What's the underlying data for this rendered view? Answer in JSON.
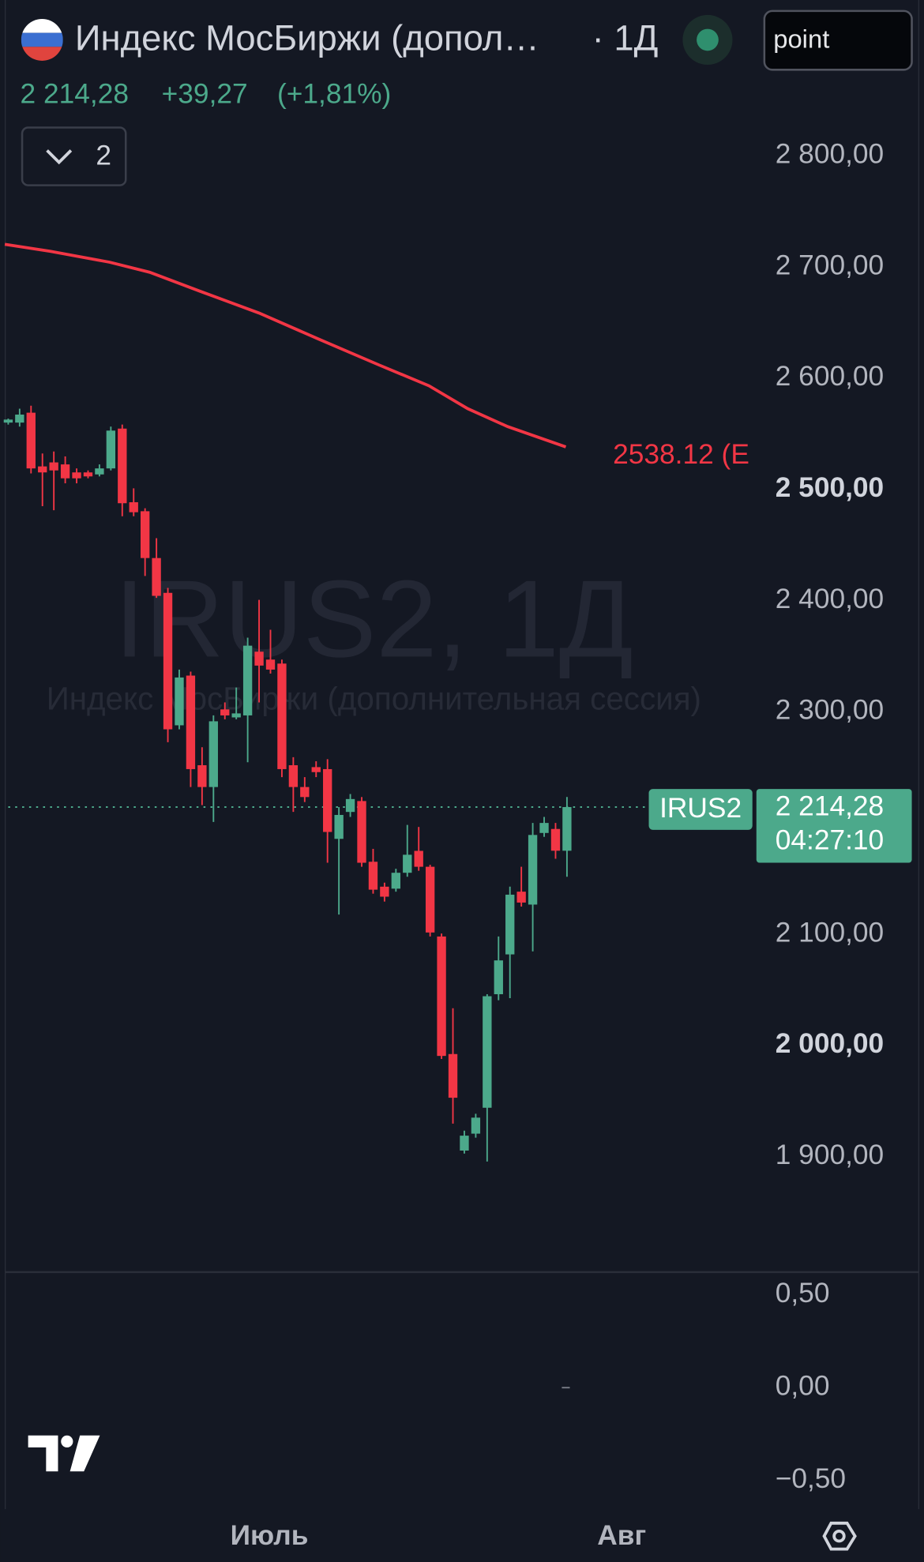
{
  "chart_data": {
    "type": "candlestick",
    "title": "Индекс МосБиржи (допол…",
    "interval": "· 1Д",
    "search": "point",
    "price": "2 214,28",
    "change": "+39,27",
    "change_pct": "(+1,81%)",
    "indicator_count": "2",
    "watermark": "IRUS2, 1Д",
    "watermark_sub": "Индекс МосБиржи (дополнительная сессия)",
    "symbol": "IRUS2",
    "countdown": "04:27:10",
    "last_price": {
      "value": 2214.28,
      "label": "2 214,28"
    },
    "up_color": "#4ca98b",
    "down_color": "#f23645",
    "candles": {
      "open": [
        2560.0,
        2560.0,
        2568.9,
        2520.6,
        2524.2,
        2522.4,
        2515.2,
        2515.2,
        2513.4,
        2518.8,
        2554.6,
        2488.4,
        2480.3,
        2438.2,
        2406.9,
        2287.8,
        2332.5,
        2251.9,
        2232.3,
        2302.1,
        2294.9,
        2296.7,
        2354.0,
        2346.9,
        2343.3,
        2251.9,
        2232.3,
        2250.2,
        2248.4,
        2185.7,
        2209.9,
        2219.7,
        2165.1,
        2142.7,
        2140.9,
        2155.2,
        2174.9,
        2160.6,
        2097.9,
        1992.2,
        1905.4,
        1920.6,
        1943.9,
        2046.0,
        2081.8,
        2138.2,
        2126.6,
        2191.0,
        2194.6,
        2175.01
      ],
      "high": [
        2563.6,
        2572.5,
        2575.2,
        2532.2,
        2534.0,
        2529.6,
        2518.8,
        2517.0,
        2522.4,
        2556.4,
        2558.2,
        2500.9,
        2483.0,
        2456.1,
        2411.3,
        2337.9,
        2336.1,
        2268.1,
        2296.7,
        2308.4,
        2321.8,
        2366.6,
        2400.6,
        2373.7,
        2346.9,
        2259.1,
        2241.2,
        2255.5,
        2257.3,
        2214.3,
        2226.0,
        2223.3,
        2176.7,
        2146.3,
        2158.8,
        2198.2,
        2196.4,
        2162.4,
        2100.6,
        2033.4,
        1923.3,
        1938.5,
        2046.0,
        2097.9,
        2142.7,
        2160.6,
        2200.0,
        2205.4,
        2200.0,
        2223.3
      ],
      "low": [
        2558.2,
        2556.4,
        2514.3,
        2484.8,
        2481.2,
        2505.4,
        2505.4,
        2509.9,
        2511.6,
        2517.0,
        2475.8,
        2475.8,
        2422.1,
        2402.4,
        2272.6,
        2284.2,
        2232.3,
        2216.1,
        2200.9,
        2293.2,
        2293.2,
        2254.6,
        2308.4,
        2334.3,
        2241.2,
        2209.9,
        2218.8,
        2241.2,
        2164.2,
        2117.6,
        2205.4,
        2160.6,
        2136.4,
        2129.3,
        2138.2,
        2151.6,
        2157.0,
        2097.9,
        1987.8,
        1929.6,
        1902.7,
        1917.0,
        1895.5,
        2040.6,
        2042.4,
        2124.8,
        2084.5,
        2187.5,
        2167.8,
        2151.6
      ],
      "close": [
        2562.7,
        2567.2,
        2518.8,
        2515.2,
        2517.0,
        2509.9,
        2509.9,
        2511.6,
        2518.8,
        2552.8,
        2487.5,
        2479.4,
        2438.2,
        2404.2,
        2284.2,
        2330.8,
        2248.4,
        2232.3,
        2291.4,
        2296.7,
        2298.5,
        2359.4,
        2341.5,
        2337.9,
        2248.4,
        2232.3,
        2223.3,
        2245.7,
        2191.9,
        2207.2,
        2221.5,
        2164.2,
        2140.0,
        2133.7,
        2155.2,
        2171.4,
        2160.6,
        2101.5,
        1990.5,
        1952.9,
        1918.8,
        1935.0,
        2044.2,
        2076.4,
        2135.5,
        2128.4,
        2189.2,
        2200.0,
        2175.01,
        2214.28
      ]
    },
    "ma": {
      "label": "2538.12 (E",
      "color": "#f23645",
      "x": [
        -0.3,
        3.7,
        8.9,
        12.4,
        16.8,
        22,
        27.2,
        32.5,
        36.9,
        40.3,
        43.8,
        48.9
      ],
      "values": [
        2720.3,
        2714.0,
        2704.2,
        2695.2,
        2678.2,
        2658.5,
        2635.2,
        2611.9,
        2593.1,
        2572.5,
        2556.4,
        2538.12
      ]
    },
    "xlim": [
      -0.7,
      65.7
    ],
    "xticks": [
      {
        "value": 22.9,
        "label": "Июль"
      },
      {
        "value": 53.8,
        "label": "Авг"
      }
    ],
    "ylim": [
      1797,
      2940
    ],
    "yticks": [
      {
        "value": 1900,
        "label": "1 900,00"
      },
      {
        "value": 2000,
        "label": "2 000,00"
      },
      {
        "value": 2100,
        "label": "2 100,00"
      },
      {
        "value": 2300,
        "label": "2 300,00"
      },
      {
        "value": 2400,
        "label": "2 400,00"
      },
      {
        "value": 2500,
        "label": "2 500,00"
      },
      {
        "value": 2600,
        "label": "2 600,00"
      },
      {
        "value": 2700,
        "label": "2 700,00"
      },
      {
        "value": 2800,
        "label": "2 800,00"
      }
    ],
    "lower_pane": {
      "ylim": [
        -0.656,
        0.618
      ],
      "yticks": [
        {
          "value": 0.5,
          "label": "0,50"
        },
        {
          "value": 0,
          "label": "0,00"
        },
        {
          "value": -0.5,
          "label": "−0,50"
        }
      ],
      "x": [
        48.9
      ],
      "values": [
        0
      ]
    }
  }
}
